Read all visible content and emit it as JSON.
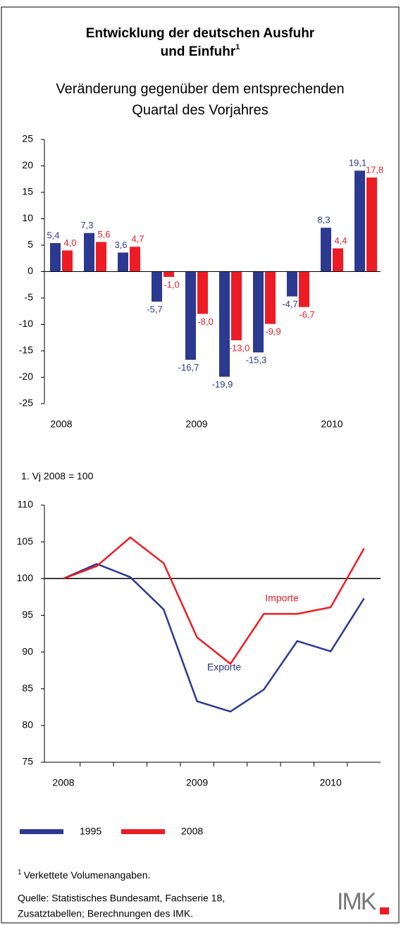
{
  "header": {
    "title": [
      "Entwicklung der deutschen Ausfuhr",
      "und Einfuhr"
    ],
    "title_note": "1",
    "subtitle": [
      "Veränderung gegenüber dem entsprechenden",
      "Quartal des Vorjahres"
    ]
  },
  "chart_data": [
    {
      "type": "bar",
      "categories": [
        "2008",
        null,
        null,
        null,
        "2009",
        null,
        null,
        null,
        "2010",
        null
      ],
      "series": [
        {
          "name": "1995",
          "color": "#2b3990",
          "values": [
            5.4,
            7.3,
            3.6,
            -5.7,
            -16.7,
            -19.9,
            -15.3,
            -4.7,
            8.3,
            19.1
          ],
          "value_labels": [
            "5,4",
            "7,3",
            "3,6",
            "-5,7",
            "-16,7",
            "-19,9",
            "-15,3",
            "-4,7",
            "8,3",
            "19,1"
          ]
        },
        {
          "name": "2008",
          "color": "#ed1c24",
          "values": [
            4.0,
            5.6,
            4.7,
            -1.0,
            -8.0,
            -13.0,
            -9.9,
            -6.7,
            4.4,
            17.8
          ],
          "value_labels": [
            "4,0",
            "5,6",
            "4,7",
            "-1,0",
            "-8,0",
            "-13,0",
            "-9,9",
            "-6,7",
            "4,4",
            "17,8"
          ]
        }
      ],
      "ylim": [
        -25,
        25
      ],
      "yticks": [
        -25,
        -20,
        -15,
        -10,
        -5,
        0,
        5,
        10,
        15,
        20,
        25
      ],
      "legend": "bottom"
    },
    {
      "type": "line",
      "y_title": "1. Vj 2008 = 100",
      "categories": [
        "2008",
        null,
        null,
        null,
        "2009",
        null,
        null,
        null,
        "2010",
        null
      ],
      "series": [
        {
          "name": "Exporte",
          "color": "#2b3990",
          "values": [
            100,
            102,
            100.2,
            95.8,
            83.3,
            81.9,
            84.9,
            91.5,
            90.1,
            97.3
          ]
        },
        {
          "name": "Importe",
          "color": "#ed1c24",
          "values": [
            100,
            101.7,
            105.6,
            102.1,
            92.0,
            88.4,
            95.2,
            95.2,
            96.1,
            104.1
          ]
        }
      ],
      "ylim": [
        75,
        110
      ],
      "yticks": [
        75,
        80,
        85,
        90,
        95,
        100,
        105,
        110
      ],
      "reference_line": 100
    }
  ],
  "footnote": {
    "mark": "1",
    "text": "Verkettete Volumenangaben."
  },
  "source": [
    "Quelle: Statistisches Bundesamt, Fachserie 18,",
    "Zusatztabellen; Berechnungen des IMK."
  ],
  "logo": "IMK"
}
